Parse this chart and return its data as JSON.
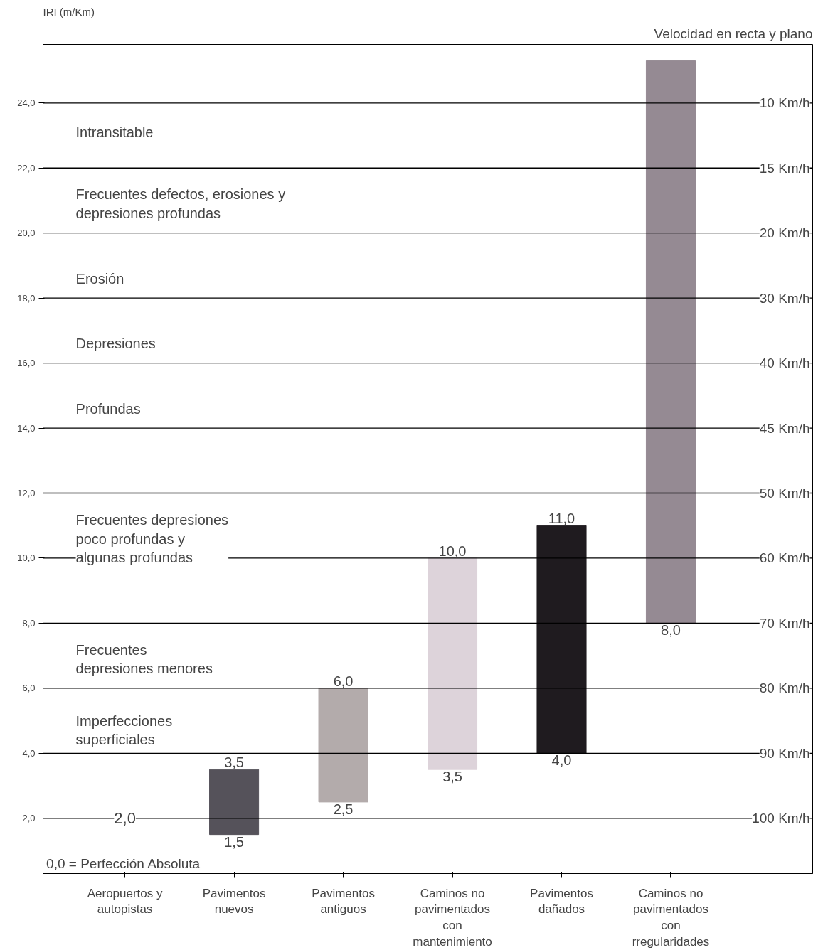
{
  "chart_data": {
    "type": "bar",
    "ylabel": "IRI (m/Km)",
    "y2label": "Velocidad en recta y plano",
    "categories": [
      "Aeropuertos y autopistas",
      "Pavimentos nuevos",
      "Pavimentos antiguos",
      "Caminos no pavimentados con mantenimiento",
      "Pavimentos dañados",
      "Caminos no pavimentados con rregularidades"
    ],
    "values": [
      null,
      2.0,
      3.5,
      6.5,
      7.0,
      17.3
    ],
    "base": [
      null,
      1.5,
      2.5,
      3.5,
      4.0,
      8.0
    ],
    "colors": [
      "#808080",
      "#55525a",
      "#b3abab",
      "#ddd3da",
      "#1f1b1f",
      "#958a93"
    ],
    "ylim": [
      0.3,
      25.8
    ],
    "yticks": [
      {
        "value": 2,
        "label": "2,0"
      },
      {
        "value": 4,
        "label": "4,0"
      },
      {
        "value": 6,
        "label": "6,0"
      },
      {
        "value": 8,
        "label": "8,0"
      },
      {
        "value": 10,
        "label": "10,0"
      },
      {
        "value": 12,
        "label": "12,0"
      },
      {
        "value": 14,
        "label": "14,0"
      },
      {
        "value": 16,
        "label": "16,0"
      },
      {
        "value": 18,
        "label": "18,0"
      },
      {
        "value": 20,
        "label": "20,0"
      },
      {
        "value": 22,
        "label": "22,0"
      },
      {
        "value": 24,
        "label": "24,0"
      }
    ],
    "ref_lines": [
      {
        "axis": "y",
        "value": 2,
        "label": "100 Km/h"
      },
      {
        "axis": "y",
        "value": 4,
        "label": "90 Km/h"
      },
      {
        "axis": "y",
        "value": 6,
        "label": "80 Km/h"
      },
      {
        "axis": "y",
        "value": 8,
        "label": "70 Km/h"
      },
      {
        "axis": "y",
        "value": 10,
        "label": "60 Km/h"
      },
      {
        "axis": "y",
        "value": 12,
        "label": "50 Km/h"
      },
      {
        "axis": "y",
        "value": 14,
        "label": "45 Km/h"
      },
      {
        "axis": "y",
        "value": 16,
        "label": "40 Km/h"
      },
      {
        "axis": "y",
        "value": 18,
        "label": "30 Km/h"
      },
      {
        "axis": "y",
        "value": 20,
        "label": "20 Km/h"
      },
      {
        "axis": "y",
        "value": 22,
        "label": "15 Km/h"
      },
      {
        "axis": "y",
        "value": 24,
        "label": "10 Km/h"
      }
    ],
    "annotations": [
      "Intransitable",
      "Frecuentes defectos, erosiones y\ndepresiones profundas",
      "Erosión",
      "Depresiones",
      "Profundas",
      "Frecuentes depresiones\npoco profundas y\nalgunas profundas",
      "Frecuentes\ndepresiones menores",
      "Imperfecciones\nsuperficiales",
      {
        "text": "2,0",
        "x": "Aeropuertos y autopistas",
        "y": 2.0
      },
      {
        "text": "3,5",
        "x": "Pavimentos nuevos",
        "y": 3.5
      },
      {
        "text": "1,5",
        "x": "Pavimentos nuevos",
        "y": 1.5
      },
      {
        "text": "6,0",
        "x": "Pavimentos antiguos",
        "y": 6.0
      },
      {
        "text": "2,5",
        "x": "Pavimentos antiguos",
        "y": 2.5
      },
      {
        "text": "10,0",
        "x": "Caminos no pavimentados con mantenimiento",
        "y": 10.0
      },
      {
        "text": "3,5",
        "x": "Caminos no pavimentados con mantenimiento",
        "y": 3.5
      },
      {
        "text": "11,0",
        "x": "Pavimentos dañados",
        "y": 11.0
      },
      {
        "text": "4,0",
        "x": "Pavimentos dañados",
        "y": 4.0
      },
      {
        "text": "8,0",
        "x": "Caminos no pavimentados con rregularidades",
        "y": 8.0
      },
      "0,0 = Perfección Absoluta"
    ]
  }
}
